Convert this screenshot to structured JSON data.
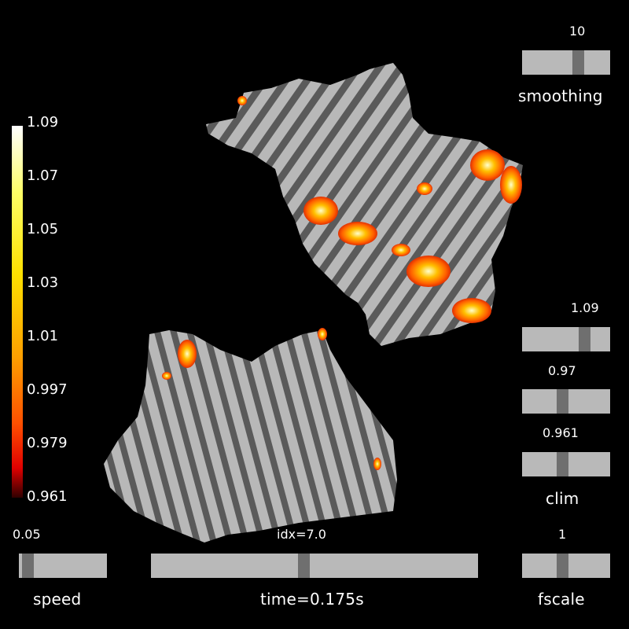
{
  "colorbar": {
    "ticks": [
      "1.09",
      "1.07",
      "1.05",
      "1.03",
      "1.01",
      "0.997",
      "0.979",
      "0.961"
    ],
    "colors": [
      "#ffffff",
      "#ffff33",
      "#ffd000",
      "#ff9000",
      "#ff4000",
      "#d00000",
      "#200000"
    ]
  },
  "controls": {
    "smoothing": {
      "label": "smoothing",
      "value": "10",
      "level": 0.64
    },
    "clim_max": {
      "value": "1.09",
      "level": 0.72
    },
    "clim_mid": {
      "value": "0.97",
      "level": 0.45
    },
    "clim_min": {
      "value": "0.961",
      "level": 0.45
    },
    "clim_label": "clim",
    "fscale": {
      "label": "fscale",
      "value": "1",
      "level": 0.45
    },
    "speed": {
      "label": "speed",
      "value": "0.05",
      "level": 0.05
    },
    "time": {
      "label": "time=0.175s",
      "idx": "idx=7.0",
      "level": 0.47
    }
  },
  "colors": {
    "background": "#000000",
    "cortex_light": "#b8b8b8",
    "cortex_dark": "#5a5a5a",
    "slider_track": "#b9b9b9",
    "slider_thumb": "#6f6f6f"
  }
}
